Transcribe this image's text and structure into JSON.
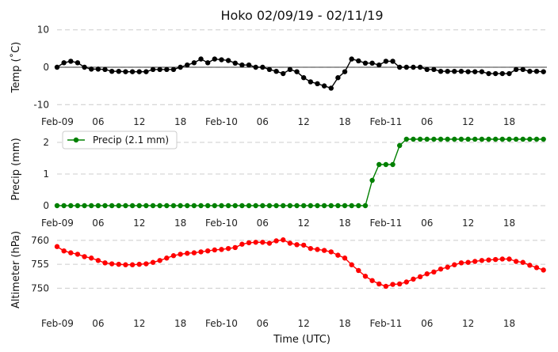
{
  "chart_data": {
    "type": "line",
    "title": "Hoko 02/09/19 - 02/11/19",
    "xlabel": "Time (UTC)",
    "x_hours": [
      0,
      1,
      2,
      3,
      4,
      5,
      6,
      7,
      8,
      9,
      10,
      11,
      12,
      13,
      14,
      15,
      16,
      17,
      18,
      19,
      20,
      21,
      22,
      23,
      24,
      25,
      26,
      27,
      28,
      29,
      30,
      31,
      32,
      33,
      34,
      35,
      36,
      37,
      38,
      39,
      40,
      41,
      42,
      43,
      44,
      45,
      46,
      47,
      48,
      49,
      50,
      51,
      52,
      53,
      54,
      55,
      56,
      57,
      58,
      59,
      60,
      61,
      62,
      63,
      64,
      65,
      66,
      67,
      68,
      69,
      70,
      71
    ],
    "x_ticks": [
      {
        "hour": 0,
        "label": "Feb-09"
      },
      {
        "hour": 6,
        "label": "06"
      },
      {
        "hour": 12,
        "label": "12"
      },
      {
        "hour": 18,
        "label": "18"
      },
      {
        "hour": 24,
        "label": "Feb-10"
      },
      {
        "hour": 30,
        "label": "06"
      },
      {
        "hour": 36,
        "label": "12"
      },
      {
        "hour": 42,
        "label": "18"
      },
      {
        "hour": 48,
        "label": "Feb-11"
      },
      {
        "hour": 54,
        "label": "06"
      },
      {
        "hour": 60,
        "label": "12"
      },
      {
        "hour": 66,
        "label": "18"
      }
    ],
    "panels": [
      {
        "id": "temp",
        "ylabel": "Temp (˚C)",
        "ylim": [
          -11,
          11
        ],
        "yticks": [
          -10,
          0,
          10
        ],
        "zero_line": true,
        "legend": null,
        "series": [
          {
            "name": "",
            "color": "#000000",
            "values": [
              0.0,
              1.2,
              1.6,
              1.2,
              0.0,
              -0.5,
              -0.5,
              -0.6,
              -1.1,
              -1.1,
              -1.2,
              -1.2,
              -1.2,
              -1.2,
              -0.6,
              -0.6,
              -0.6,
              -0.6,
              0.0,
              0.6,
              1.2,
              2.2,
              1.2,
              2.2,
              2.0,
              1.8,
              1.1,
              0.6,
              0.6,
              0.0,
              0.0,
              -0.6,
              -1.1,
              -1.7,
              -0.6,
              -1.2,
              -2.8,
              -3.9,
              -4.4,
              -5.0,
              -5.6,
              -2.8,
              -1.2,
              2.2,
              1.7,
              1.1,
              1.1,
              0.6,
              1.6,
              1.6,
              0.0,
              0.0,
              0.0,
              0.0,
              -0.6,
              -0.6,
              -1.1,
              -1.1,
              -1.1,
              -1.1,
              -1.2,
              -1.2,
              -1.2,
              -1.7,
              -1.7,
              -1.7,
              -1.7,
              -0.6,
              -0.6,
              -1.1,
              -1.1,
              -1.2
            ]
          }
        ]
      },
      {
        "id": "precip",
        "ylabel": "Precip (mm)",
        "ylim": [
          -0.1,
          2.35
        ],
        "yticks": [
          0,
          1,
          2
        ],
        "zero_line": false,
        "legend": {
          "label": "Precip (2.1 mm)",
          "placement": "upper-left"
        },
        "series": [
          {
            "name": "Precip (2.1 mm)",
            "color": "#008000",
            "values": [
              0,
              0,
              0,
              0,
              0,
              0,
              0,
              0,
              0,
              0,
              0,
              0,
              0,
              0,
              0,
              0,
              0,
              0,
              0,
              0,
              0,
              0,
              0,
              0,
              0,
              0,
              0,
              0,
              0,
              0,
              0,
              0,
              0,
              0,
              0,
              0,
              0,
              0,
              0,
              0,
              0,
              0,
              0,
              0,
              0,
              0,
              0.8,
              1.3,
              1.3,
              1.3,
              1.9,
              2.1,
              2.1,
              2.1,
              2.1,
              2.1,
              2.1,
              2.1,
              2.1,
              2.1,
              2.1,
              2.1,
              2.1,
              2.1,
              2.1,
              2.1,
              2.1,
              2.1,
              2.1,
              2.1,
              2.1,
              2.1
            ]
          }
        ]
      },
      {
        "id": "alt",
        "ylabel": "Altimeter (hPa)",
        "ylim": [
          745.6,
          761.3
        ],
        "yticks": [
          750,
          755,
          760
        ],
        "zero_line": false,
        "legend": null,
        "series": [
          {
            "name": "",
            "color": "#ff0000",
            "values": [
              758.7,
              757.8,
              757.4,
              757.1,
              756.6,
              756.3,
              755.8,
              755.3,
              755.1,
              755.0,
              754.9,
              754.9,
              755.0,
              755.1,
              755.4,
              755.8,
              756.3,
              756.8,
              757.1,
              757.3,
              757.4,
              757.6,
              757.8,
              758.0,
              758.1,
              758.3,
              758.5,
              759.2,
              759.5,
              759.6,
              759.6,
              759.4,
              759.9,
              760.1,
              759.4,
              759.1,
              759.0,
              758.3,
              758.1,
              757.9,
              757.6,
              756.9,
              756.3,
              754.9,
              753.7,
              752.5,
              751.6,
              750.9,
              750.4,
              750.8,
              750.9,
              751.3,
              751.9,
              752.4,
              753.0,
              753.4,
              754.0,
              754.4,
              754.9,
              755.3,
              755.4,
              755.6,
              755.8,
              755.9,
              756.0,
              756.1,
              756.1,
              755.6,
              755.4,
              754.8,
              754.3,
              753.8
            ]
          }
        ]
      }
    ]
  }
}
